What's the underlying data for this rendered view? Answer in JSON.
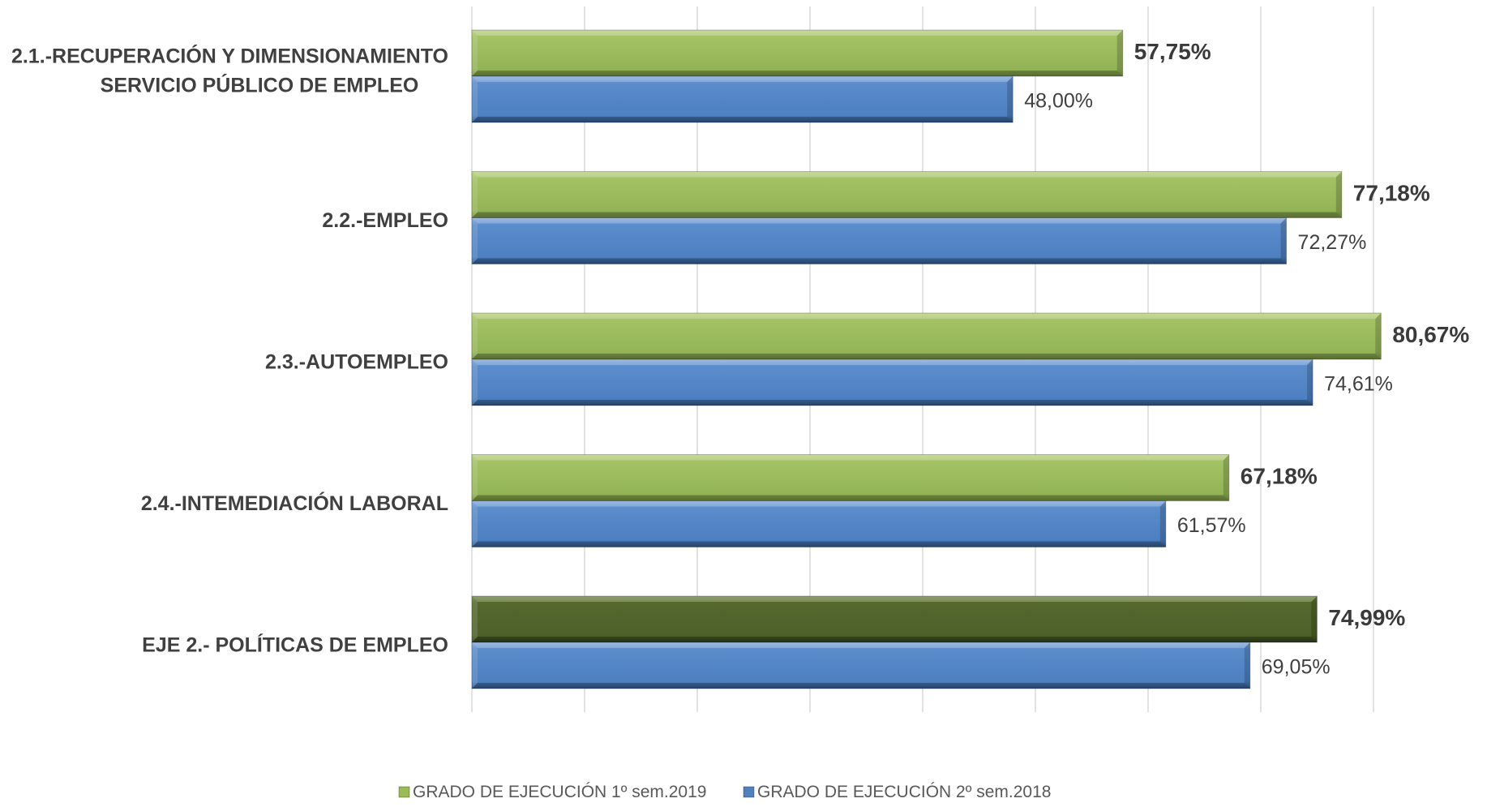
{
  "chart_data": {
    "type": "bar",
    "orientation": "horizontal",
    "title": "",
    "xlabel": "",
    "ylabel": "",
    "xlim": [
      0,
      0.8
    ],
    "grid": true,
    "legend_position": "bottom",
    "categories": [
      "2.1.-RECUPERACIÓN Y DIMENSIONAMIENTO SERVICIO PÚBLICO DE EMPLEO",
      "2.2.-EMPLEO",
      "2.3.-AUTOEMPLEO",
      "2.4.-INTEMEDIACIÓN LABORAL",
      "EJE 2.- POLÍTICAS DE EMPLEO"
    ],
    "category_lines": [
      [
        "2.1.-RECUPERACIÓN Y DIMENSIONAMIENTO",
        "SERVICIO PÚBLICO DE EMPLEO"
      ],
      [
        "2.2.-EMPLEO"
      ],
      [
        "2.3.-AUTOEMPLEO"
      ],
      [
        "2.4.-INTEMEDIACIÓN LABORAL"
      ],
      [
        "EJE 2.- POLÍTICAS DE EMPLEO"
      ]
    ],
    "series": [
      {
        "name": "GRADO DE EJECUCIÓN 1º sem.2019",
        "color": "#9bbb59",
        "highlight_color": "#4f6228",
        "values": [
          0.5775,
          0.7718,
          0.8067,
          0.6718,
          0.7499
        ],
        "labels": [
          "57,75%",
          "77,18%",
          "80,67%",
          "67,18%",
          "74,99%"
        ]
      },
      {
        "name": "GRADO DE EJECUCIÓN 2º sem.2018",
        "color": "#4f81bd",
        "values": [
          0.48,
          0.7227,
          0.7461,
          0.6157,
          0.6905
        ],
        "labels": [
          "48,00%",
          "72,27%",
          "74,61%",
          "61,57%",
          "69,05%"
        ]
      }
    ]
  }
}
